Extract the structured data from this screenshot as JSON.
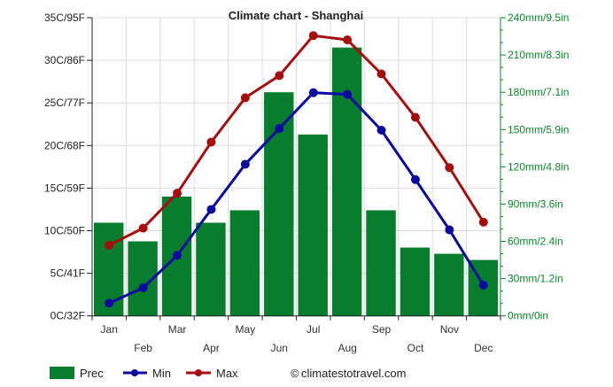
{
  "chart_data": {
    "type": "bar+line",
    "title": "Climate chart - Shanghai",
    "categories": [
      "Jan",
      "Feb",
      "Mar",
      "Apr",
      "May",
      "Jun",
      "Jul",
      "Aug",
      "Sep",
      "Oct",
      "Nov",
      "Dec"
    ],
    "series": [
      {
        "name": "Prec",
        "type": "bar",
        "axis": "right",
        "unit": "mm",
        "color": "#077d2d",
        "values": [
          75,
          60,
          96,
          75,
          85,
          180,
          146,
          216,
          85,
          55,
          50,
          45
        ]
      },
      {
        "name": "Min",
        "type": "line",
        "axis": "left",
        "unit": "C",
        "color": "#0a0aa0",
        "values": [
          1.5,
          3.3,
          7.1,
          12.5,
          17.8,
          22.0,
          26.2,
          26.0,
          21.8,
          16.0,
          10.1,
          3.6
        ]
      },
      {
        "name": "Max",
        "type": "line",
        "axis": "left",
        "unit": "C",
        "color": "#a80d0d",
        "values": [
          8.3,
          10.3,
          14.4,
          20.4,
          25.6,
          28.2,
          32.9,
          32.4,
          28.4,
          23.3,
          17.4,
          11.0
        ]
      }
    ],
    "left_axis": {
      "ylim": [
        0,
        35
      ],
      "ticks": [
        "0C/32F",
        "5C/41F",
        "10C/50F",
        "15C/59F",
        "20C/68F",
        "25C/77F",
        "30C/86F",
        "35C/95F"
      ]
    },
    "right_axis": {
      "ylim": [
        0,
        240
      ],
      "ticks": [
        "0mm/0in",
        "30mm/1.2in",
        "60mm/2.4in",
        "90mm/3.6in",
        "120mm/4.8in",
        "150mm/5.9in",
        "180mm/7.1in",
        "210mm/8.3in",
        "240mm/9.5in"
      ]
    },
    "grid": true,
    "legend": {
      "placement": "bottom-left",
      "entries": [
        "Prec",
        "Min",
        "Max"
      ]
    },
    "credit": "climatestotravel.com"
  }
}
